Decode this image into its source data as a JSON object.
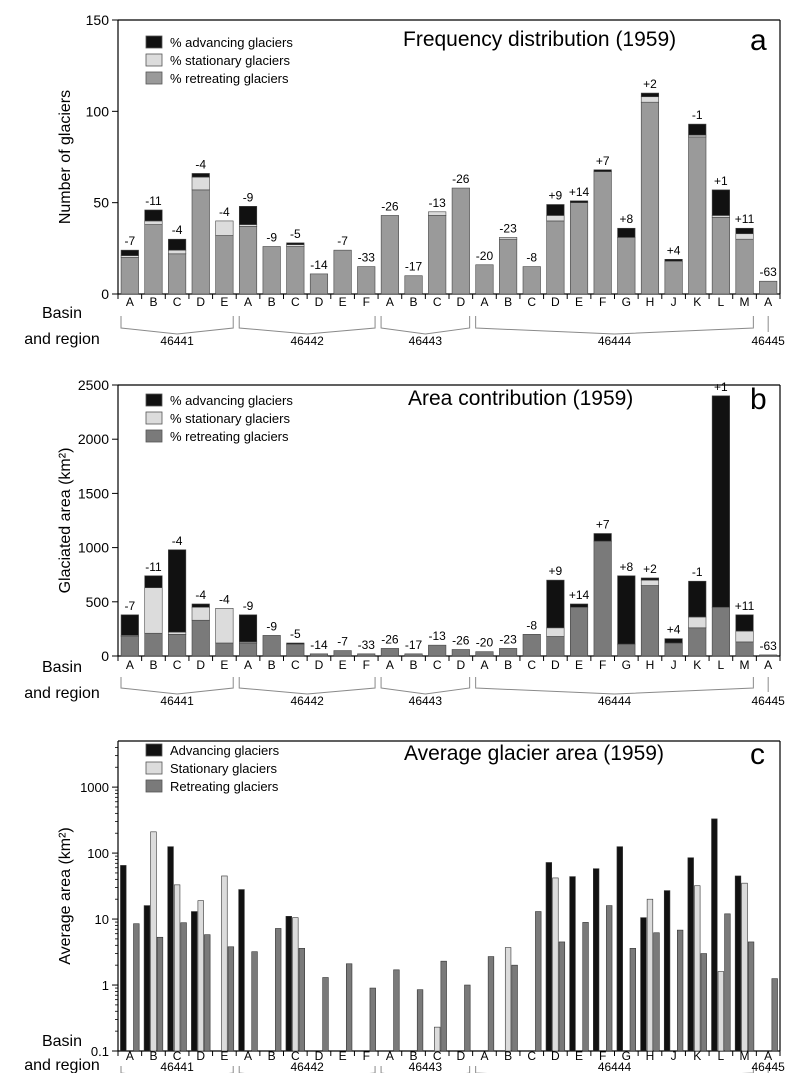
{
  "colors": {
    "advancing": "#111111",
    "stationary": "#dcdcdc",
    "retreating": "#9a9a9a",
    "retreating_dark": "#7a7a7a",
    "axis": "#000000",
    "bracket": "#8a8a8a"
  },
  "row_label": [
    "Basin",
    "and region"
  ],
  "columns": [
    "A",
    "B",
    "C",
    "D",
    "E",
    "A",
    "B",
    "C",
    "D",
    "E",
    "F",
    "A",
    "B",
    "C",
    "D",
    "A",
    "B",
    "C",
    "D",
    "E",
    "F",
    "G",
    "H",
    "J",
    "K",
    "L",
    "M",
    "A"
  ],
  "basins": [
    {
      "name": "46441",
      "from": 0,
      "to": 4
    },
    {
      "name": "46442",
      "from": 5,
      "to": 10
    },
    {
      "name": "46443",
      "from": 11,
      "to": 14
    },
    {
      "name": "46444",
      "from": 15,
      "to": 26
    },
    {
      "name": "46445",
      "from": 27,
      "to": 27
    }
  ],
  "change_labels": [
    "-7",
    "-11",
    "-4",
    "-4",
    "-4",
    "-9",
    "-9",
    "-5",
    "-14",
    "-7",
    "-33",
    "-26",
    "-17",
    "-13",
    "-26",
    "-20",
    "-23",
    "-8",
    "+9",
    "+14",
    "+7",
    "+8",
    "+2",
    "+4",
    "-1",
    "+1",
    "+11",
    "-63"
  ],
  "chart_data": [
    {
      "type": "bar",
      "stacked": true,
      "title": "Frequency distribution (1959)",
      "panel_letter": "a",
      "ylabel": "Number of glaciers",
      "ylim": [
        0,
        150
      ],
      "yticks": [
        0,
        50,
        100,
        150
      ],
      "legend_position": "top-left",
      "series": [
        {
          "name": "% retreating glaciers",
          "values": [
            20,
            38,
            22,
            57,
            32,
            37,
            26,
            26,
            11,
            24,
            15,
            43,
            10,
            43,
            58,
            16,
            30,
            15,
            40,
            50,
            67,
            31,
            105,
            18,
            86,
            42,
            30,
            7
          ]
        },
        {
          "name": "% stationary glaciers",
          "values": [
            1,
            2,
            2,
            7,
            8,
            1,
            0,
            1,
            0,
            0,
            0,
            0,
            0,
            2,
            0,
            0,
            1,
            0,
            3,
            0,
            0,
            0,
            3,
            0,
            1,
            1,
            3,
            0
          ]
        },
        {
          "name": "% advancing glaciers",
          "values": [
            3,
            6,
            6,
            2,
            0,
            10,
            0,
            1,
            0,
            0,
            0,
            0,
            0,
            0,
            0,
            0,
            0,
            0,
            6,
            1,
            1,
            5,
            2,
            1,
            6,
            14,
            3,
            0
          ]
        }
      ]
    },
    {
      "type": "bar",
      "stacked": true,
      "title": "Area contribution (1959)",
      "panel_letter": "b",
      "ylabel": "Glaciated area (km²)",
      "ylim": [
        0,
        2500
      ],
      "yticks": [
        0,
        500,
        1000,
        1500,
        2000,
        2500
      ],
      "legend_position": "top-left",
      "series": [
        {
          "name": "% retreating glaciers",
          "values": [
            180,
            210,
            200,
            330,
            120,
            120,
            190,
            110,
            20,
            50,
            20,
            70,
            20,
            100,
            60,
            40,
            70,
            200,
            180,
            450,
            1060,
            110,
            650,
            120,
            260,
            450,
            130,
            10
          ]
        },
        {
          "name": "% stationary glaciers",
          "values": [
            10,
            420,
            20,
            120,
            320,
            10,
            0,
            0,
            0,
            0,
            0,
            0,
            0,
            0,
            0,
            0,
            0,
            0,
            80,
            0,
            0,
            0,
            50,
            0,
            100,
            0,
            100,
            0
          ]
        },
        {
          "name": "% advancing glaciers",
          "values": [
            190,
            110,
            760,
            30,
            0,
            250,
            0,
            10,
            0,
            0,
            0,
            0,
            0,
            0,
            0,
            0,
            0,
            0,
            440,
            30,
            70,
            630,
            20,
            40,
            330,
            1950,
            150,
            0
          ]
        }
      ]
    },
    {
      "type": "bar",
      "log_scale": true,
      "title": "Average glacier area (1959)",
      "panel_letter": "c",
      "ylabel": "Average area (km²)",
      "ylim": [
        0.1,
        5000
      ],
      "yticks": [
        0.1,
        1,
        10,
        100,
        1000
      ],
      "legend_position": "top-left",
      "series": [
        {
          "name": "Advancing glaciers",
          "values": [
            65,
            16,
            125,
            13,
            null,
            28,
            null,
            11,
            null,
            null,
            null,
            null,
            null,
            null,
            null,
            null,
            null,
            null,
            72,
            44,
            58,
            125,
            10.5,
            27,
            85,
            330,
            45,
            null
          ]
        },
        {
          "name": "Stationary glaciers",
          "values": [
            null,
            210,
            33,
            19,
            45,
            null,
            null,
            10.5,
            null,
            null,
            null,
            null,
            null,
            0.23,
            null,
            null,
            3.7,
            null,
            42,
            null,
            null,
            null,
            20,
            null,
            32,
            1.6,
            35,
            null
          ]
        },
        {
          "name": "Retreating glaciers",
          "values": [
            8.5,
            5.3,
            8.8,
            5.8,
            3.8,
            3.2,
            7.2,
            3.6,
            1.3,
            2.1,
            0.9,
            1.7,
            0.85,
            2.3,
            1.0,
            2.7,
            2.0,
            13,
            4.5,
            8.9,
            16,
            3.6,
            6.2,
            6.8,
            3.0,
            12,
            4.5,
            1.25
          ]
        }
      ]
    }
  ]
}
